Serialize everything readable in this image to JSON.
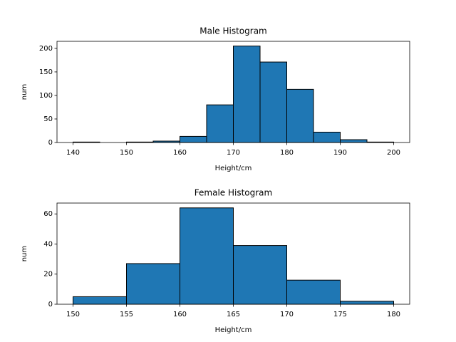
{
  "chart_data": [
    {
      "type": "histogram",
      "title": "Male Histogram",
      "xlabel": "Height/cm",
      "ylabel": "num",
      "bins": [
        140,
        145,
        150,
        155,
        160,
        165,
        170,
        175,
        180,
        185,
        190,
        195,
        200
      ],
      "counts": [
        1,
        0,
        1,
        3,
        13,
        80,
        205,
        171,
        113,
        22,
        6,
        1
      ],
      "color": "#1f77b4",
      "edgecolor": "#000000",
      "xlim": [
        137,
        203
      ],
      "xticks": [
        140,
        150,
        160,
        170,
        180,
        190,
        200
      ],
      "ylim": [
        0,
        215
      ],
      "yticks": [
        0,
        50,
        100,
        150,
        200
      ]
    },
    {
      "type": "histogram",
      "title": "Female Histogram",
      "xlabel": "Height/cm",
      "ylabel": "num",
      "bins": [
        150,
        155,
        160,
        165,
        170,
        175,
        180
      ],
      "counts": [
        5,
        27,
        64,
        39,
        16,
        2
      ],
      "color": "#1f77b4",
      "edgecolor": "#000000",
      "xlim": [
        148.5,
        181.5
      ],
      "xticks": [
        150,
        155,
        160,
        165,
        170,
        175,
        180
      ],
      "ylim": [
        0,
        67.2
      ],
      "yticks": [
        0,
        20,
        40,
        60
      ]
    }
  ]
}
